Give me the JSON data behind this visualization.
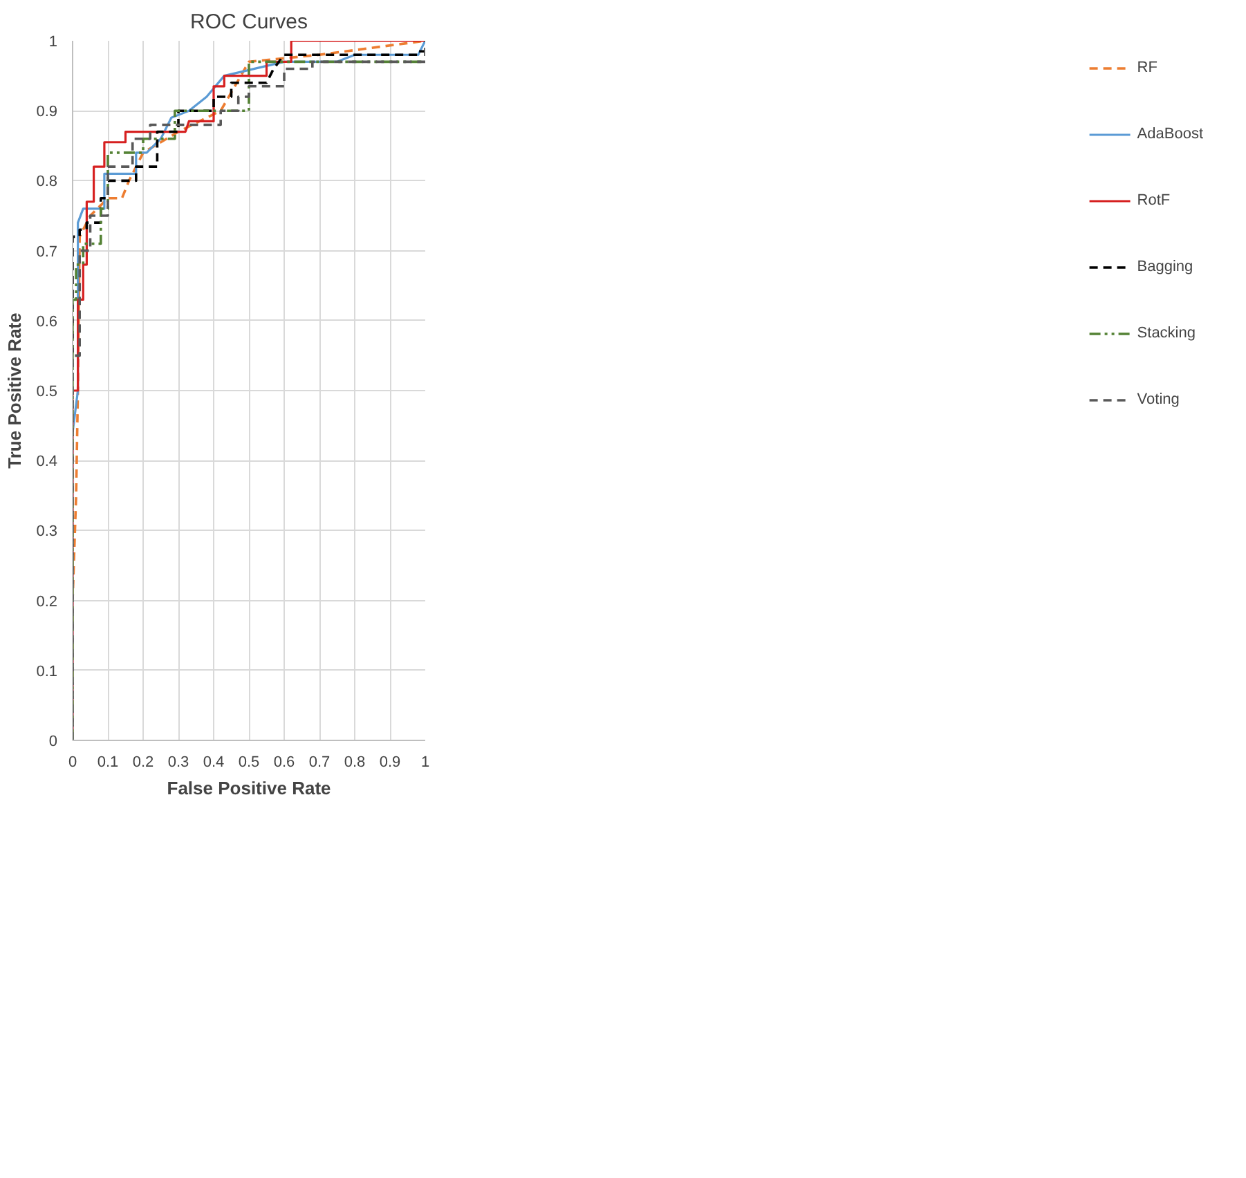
{
  "chart_data": {
    "type": "line",
    "title": "ROC Curves",
    "xlabel": "False Positive Rate",
    "ylabel": "True Positive Rate",
    "xlim": [
      0,
      1
    ],
    "ylim": [
      0,
      1
    ],
    "xticks": [
      0,
      0.1,
      0.2,
      0.3,
      0.4,
      0.5,
      0.6,
      0.7,
      0.8,
      0.9,
      1
    ],
    "yticks": [
      0,
      0.1,
      0.2,
      0.3,
      0.4,
      0.5,
      0.6,
      0.7,
      0.8,
      0.9,
      1
    ],
    "grid": true,
    "legend": "right",
    "marker": "none",
    "series": [
      {
        "name": "RF",
        "color": "#ed7d31",
        "line_style": "dashed",
        "x": [
          0,
          0,
          0.01,
          0.015,
          0.02,
          0.05,
          0.07,
          0.1,
          0.14,
          0.16,
          0.2,
          0.3,
          0.42,
          0.5,
          0.7,
          1
        ],
        "values": [
          0,
          0.2,
          0.35,
          0.5,
          0.72,
          0.75,
          0.76,
          0.775,
          0.775,
          0.8,
          0.84,
          0.87,
          0.9,
          0.97,
          0.98,
          1
        ]
      },
      {
        "name": "AdaBoost",
        "color": "#5b9bd5",
        "line_style": "solid",
        "x": [
          0,
          0,
          0.015,
          0.015,
          0.03,
          0.09,
          0.09,
          0.18,
          0.18,
          0.21,
          0.25,
          0.28,
          0.33,
          0.38,
          0.43,
          0.6,
          0.75,
          0.8,
          0.98,
          1
        ],
        "values": [
          0,
          0.44,
          0.5,
          0.74,
          0.76,
          0.76,
          0.81,
          0.81,
          0.84,
          0.84,
          0.86,
          0.89,
          0.9,
          0.92,
          0.95,
          0.97,
          0.97,
          0.98,
          0.98,
          1
        ]
      },
      {
        "name": "RotF",
        "color": "#d62020",
        "line_style": "solid",
        "x": [
          0,
          0,
          0.015,
          0.015,
          0.03,
          0.03,
          0.04,
          0.04,
          0.06,
          0.06,
          0.09,
          0.09,
          0.15,
          0.15,
          0.32,
          0.33,
          0.4,
          0.4,
          0.43,
          0.43,
          0.55,
          0.55,
          0.62,
          0.62,
          1
        ],
        "values": [
          0,
          0.5,
          0.5,
          0.63,
          0.63,
          0.68,
          0.68,
          0.77,
          0.77,
          0.82,
          0.82,
          0.855,
          0.855,
          0.87,
          0.87,
          0.885,
          0.885,
          0.935,
          0.935,
          0.95,
          0.95,
          0.97,
          0.97,
          1,
          1
        ]
      },
      {
        "name": "Bagging",
        "color": "#000000",
        "line_style": "dashed",
        "x": [
          0,
          0,
          0.02,
          0.02,
          0.04,
          0.04,
          0.08,
          0.08,
          0.1,
          0.1,
          0.18,
          0.18,
          0.24,
          0.24,
          0.3,
          0.3,
          0.4,
          0.4,
          0.45,
          0.45,
          0.55,
          0.57,
          0.6,
          0.98,
          0.98,
          1
        ],
        "values": [
          0,
          0.72,
          0.72,
          0.73,
          0.73,
          0.74,
          0.74,
          0.775,
          0.775,
          0.8,
          0.8,
          0.82,
          0.82,
          0.87,
          0.87,
          0.9,
          0.9,
          0.92,
          0.92,
          0.94,
          0.94,
          0.96,
          0.98,
          0.98,
          0.985,
          0.985
        ]
      },
      {
        "name": "Stacking",
        "color": "#548235",
        "line_style": "dashdot",
        "x": [
          0,
          0,
          0.01,
          0.01,
          0.03,
          0.03,
          0.08,
          0.08,
          0.1,
          0.1,
          0.2,
          0.2,
          0.29,
          0.29,
          0.5,
          0.5,
          1
        ],
        "values": [
          0,
          0.63,
          0.63,
          0.68,
          0.68,
          0.71,
          0.71,
          0.76,
          0.76,
          0.84,
          0.84,
          0.86,
          0.86,
          0.9,
          0.9,
          0.97,
          0.97
        ]
      },
      {
        "name": "Voting",
        "color": "#595959",
        "line_style": "dashed",
        "x": [
          0,
          0,
          0.02,
          0.02,
          0.05,
          0.05,
          0.1,
          0.1,
          0.17,
          0.17,
          0.22,
          0.22,
          0.42,
          0.42,
          0.47,
          0.47,
          0.5,
          0.5,
          0.6,
          0.6,
          0.68,
          0.68,
          1,
          1
        ],
        "values": [
          0,
          0.55,
          0.55,
          0.7,
          0.7,
          0.75,
          0.75,
          0.82,
          0.82,
          0.86,
          0.86,
          0.88,
          0.88,
          0.9,
          0.9,
          0.92,
          0.92,
          0.935,
          0.935,
          0.96,
          0.96,
          0.97,
          0.97,
          1
        ]
      }
    ]
  }
}
